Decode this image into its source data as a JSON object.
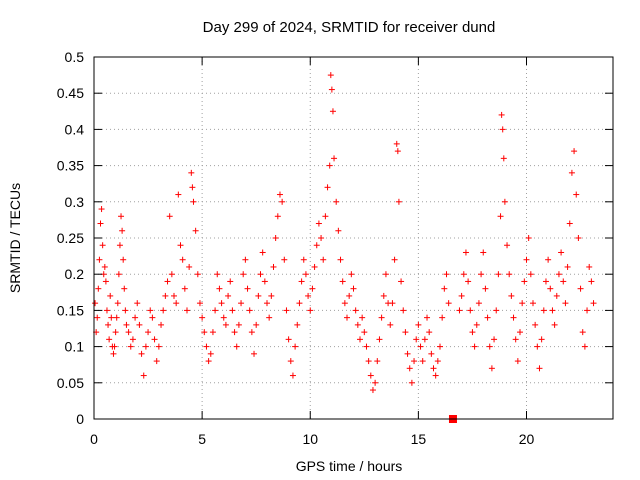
{
  "chart_data": {
    "type": "scatter",
    "title": "Day 299 of 2024, SRMTID for receiver dund",
    "xlabel": "GPS time / hours",
    "ylabel": "SRMTID / TECUs",
    "xlim": [
      0,
      24
    ],
    "ylim": [
      0,
      0.5
    ],
    "x_ticks": [
      0,
      5,
      10,
      15,
      20
    ],
    "x_tick_labels": [
      "0",
      "5",
      "10",
      "15",
      "20"
    ],
    "y_ticks": [
      0,
      0.05,
      0.1,
      0.15,
      0.2,
      0.25,
      0.3,
      0.35,
      0.4,
      0.45,
      0.5
    ],
    "y_tick_labels": [
      "0",
      "0.05",
      "0.1",
      "0.15",
      "0.2",
      "0.25",
      "0.3",
      "0.35",
      "0.4",
      "0.45",
      "0.5"
    ],
    "grid": true,
    "series": [
      {
        "name": "SRMTID",
        "marker": "plus",
        "color": "#ff0000",
        "points": [
          [
            0.05,
            0.16
          ],
          [
            0.1,
            0.12
          ],
          [
            0.15,
            0.14
          ],
          [
            0.2,
            0.18
          ],
          [
            0.25,
            0.22
          ],
          [
            0.3,
            0.27
          ],
          [
            0.35,
            0.29
          ],
          [
            0.4,
            0.24
          ],
          [
            0.45,
            0.2
          ],
          [
            0.5,
            0.21
          ],
          [
            0.55,
            0.19
          ],
          [
            0.6,
            0.15
          ],
          [
            0.65,
            0.13
          ],
          [
            0.7,
            0.11
          ],
          [
            0.75,
            0.17
          ],
          [
            0.8,
            0.14
          ],
          [
            0.85,
            0.1
          ],
          [
            0.9,
            0.09
          ],
          [
            0.95,
            0.1
          ],
          [
            1.0,
            0.12
          ],
          [
            1.05,
            0.14
          ],
          [
            1.1,
            0.16
          ],
          [
            1.15,
            0.2
          ],
          [
            1.2,
            0.24
          ],
          [
            1.25,
            0.28
          ],
          [
            1.3,
            0.26
          ],
          [
            1.35,
            0.22
          ],
          [
            1.4,
            0.18
          ],
          [
            1.45,
            0.15
          ],
          [
            1.5,
            0.13
          ],
          [
            1.6,
            0.12
          ],
          [
            1.7,
            0.1
          ],
          [
            1.8,
            0.11
          ],
          [
            1.9,
            0.14
          ],
          [
            2.0,
            0.16
          ],
          [
            2.1,
            0.13
          ],
          [
            2.2,
            0.09
          ],
          [
            2.3,
            0.06
          ],
          [
            2.4,
            0.1
          ],
          [
            2.5,
            0.12
          ],
          [
            2.6,
            0.15
          ],
          [
            2.7,
            0.14
          ],
          [
            2.8,
            0.11
          ],
          [
            2.9,
            0.08
          ],
          [
            3.0,
            0.1
          ],
          [
            3.1,
            0.13
          ],
          [
            3.2,
            0.15
          ],
          [
            3.3,
            0.17
          ],
          [
            3.4,
            0.19
          ],
          [
            3.5,
            0.28
          ],
          [
            3.6,
            0.2
          ],
          [
            3.7,
            0.17
          ],
          [
            3.8,
            0.16
          ],
          [
            3.9,
            0.31
          ],
          [
            4.0,
            0.24
          ],
          [
            4.1,
            0.22
          ],
          [
            4.2,
            0.18
          ],
          [
            4.3,
            0.15
          ],
          [
            4.4,
            0.21
          ],
          [
            4.5,
            0.34
          ],
          [
            4.55,
            0.32
          ],
          [
            4.6,
            0.3
          ],
          [
            4.7,
            0.26
          ],
          [
            4.8,
            0.2
          ],
          [
            4.9,
            0.16
          ],
          [
            5.0,
            0.14
          ],
          [
            5.1,
            0.12
          ],
          [
            5.2,
            0.1
          ],
          [
            5.3,
            0.08
          ],
          [
            5.4,
            0.09
          ],
          [
            5.5,
            0.12
          ],
          [
            5.6,
            0.15
          ],
          [
            5.7,
            0.2
          ],
          [
            5.8,
            0.18
          ],
          [
            5.9,
            0.16
          ],
          [
            6.0,
            0.14
          ],
          [
            6.1,
            0.13
          ],
          [
            6.2,
            0.17
          ],
          [
            6.3,
            0.19
          ],
          [
            6.4,
            0.15
          ],
          [
            6.5,
            0.12
          ],
          [
            6.6,
            0.1
          ],
          [
            6.7,
            0.13
          ],
          [
            6.8,
            0.16
          ],
          [
            6.9,
            0.2
          ],
          [
            7.0,
            0.22
          ],
          [
            7.1,
            0.18
          ],
          [
            7.2,
            0.15
          ],
          [
            7.3,
            0.12
          ],
          [
            7.4,
            0.09
          ],
          [
            7.5,
            0.13
          ],
          [
            7.6,
            0.17
          ],
          [
            7.7,
            0.2
          ],
          [
            7.8,
            0.23
          ],
          [
            7.9,
            0.19
          ],
          [
            8.0,
            0.16
          ],
          [
            8.1,
            0.14
          ],
          [
            8.2,
            0.17
          ],
          [
            8.3,
            0.21
          ],
          [
            8.4,
            0.25
          ],
          [
            8.5,
            0.28
          ],
          [
            8.6,
            0.31
          ],
          [
            8.7,
            0.3
          ],
          [
            8.8,
            0.22
          ],
          [
            8.9,
            0.15
          ],
          [
            9.0,
            0.11
          ],
          [
            9.1,
            0.08
          ],
          [
            9.2,
            0.06
          ],
          [
            9.3,
            0.1
          ],
          [
            9.4,
            0.13
          ],
          [
            9.5,
            0.16
          ],
          [
            9.6,
            0.19
          ],
          [
            9.7,
            0.22
          ],
          [
            9.8,
            0.2
          ],
          [
            9.9,
            0.17
          ],
          [
            10.0,
            0.15
          ],
          [
            10.1,
            0.18
          ],
          [
            10.2,
            0.21
          ],
          [
            10.3,
            0.24
          ],
          [
            10.4,
            0.27
          ],
          [
            10.5,
            0.25
          ],
          [
            10.6,
            0.22
          ],
          [
            10.7,
            0.28
          ],
          [
            10.8,
            0.32
          ],
          [
            10.9,
            0.35
          ],
          [
            10.95,
            0.475
          ],
          [
            11.0,
            0.455
          ],
          [
            11.05,
            0.425
          ],
          [
            11.1,
            0.36
          ],
          [
            11.2,
            0.3
          ],
          [
            11.3,
            0.26
          ],
          [
            11.4,
            0.22
          ],
          [
            11.5,
            0.19
          ],
          [
            11.6,
            0.16
          ],
          [
            11.7,
            0.14
          ],
          [
            11.8,
            0.17
          ],
          [
            11.9,
            0.2
          ],
          [
            12.0,
            0.18
          ],
          [
            12.1,
            0.15
          ],
          [
            12.2,
            0.13
          ],
          [
            12.3,
            0.11
          ],
          [
            12.4,
            0.14
          ],
          [
            12.5,
            0.12
          ],
          [
            12.6,
            0.1
          ],
          [
            12.7,
            0.08
          ],
          [
            12.8,
            0.06
          ],
          [
            12.9,
            0.04
          ],
          [
            13.0,
            0.05
          ],
          [
            13.1,
            0.08
          ],
          [
            13.2,
            0.11
          ],
          [
            13.3,
            0.14
          ],
          [
            13.4,
            0.17
          ],
          [
            13.5,
            0.2
          ],
          [
            13.6,
            0.16
          ],
          [
            13.7,
            0.13
          ],
          [
            13.8,
            0.16
          ],
          [
            13.9,
            0.22
          ],
          [
            14.0,
            0.38
          ],
          [
            14.05,
            0.37
          ],
          [
            14.1,
            0.3
          ],
          [
            14.2,
            0.19
          ],
          [
            14.3,
            0.15
          ],
          [
            14.4,
            0.12
          ],
          [
            14.5,
            0.09
          ],
          [
            14.6,
            0.07
          ],
          [
            14.7,
            0.05
          ],
          [
            14.8,
            0.08
          ],
          [
            14.9,
            0.11
          ],
          [
            15.0,
            0.13
          ],
          [
            15.1,
            0.1
          ],
          [
            15.2,
            0.08
          ],
          [
            15.3,
            0.11
          ],
          [
            15.4,
            0.14
          ],
          [
            15.5,
            0.12
          ],
          [
            15.6,
            0.09
          ],
          [
            15.7,
            0.07
          ],
          [
            15.8,
            0.06
          ],
          [
            15.9,
            0.08
          ],
          [
            16.0,
            0.1
          ],
          [
            16.1,
            0.14
          ],
          [
            16.2,
            0.18
          ],
          [
            16.3,
            0.2
          ],
          [
            16.4,
            0.16
          ],
          [
            16.9,
            0.15
          ],
          [
            17.0,
            0.17
          ],
          [
            17.1,
            0.2
          ],
          [
            17.2,
            0.23
          ],
          [
            17.3,
            0.19
          ],
          [
            17.4,
            0.15
          ],
          [
            17.5,
            0.12
          ],
          [
            17.6,
            0.1
          ],
          [
            17.7,
            0.13
          ],
          [
            17.8,
            0.16
          ],
          [
            17.9,
            0.2
          ],
          [
            18.0,
            0.23
          ],
          [
            18.1,
            0.18
          ],
          [
            18.2,
            0.14
          ],
          [
            18.3,
            0.1
          ],
          [
            18.4,
            0.07
          ],
          [
            18.5,
            0.11
          ],
          [
            18.6,
            0.15
          ],
          [
            18.7,
            0.2
          ],
          [
            18.8,
            0.28
          ],
          [
            18.85,
            0.42
          ],
          [
            18.9,
            0.4
          ],
          [
            18.95,
            0.36
          ],
          [
            19.0,
            0.3
          ],
          [
            19.1,
            0.24
          ],
          [
            19.2,
            0.2
          ],
          [
            19.3,
            0.17
          ],
          [
            19.4,
            0.14
          ],
          [
            19.5,
            0.11
          ],
          [
            19.6,
            0.08
          ],
          [
            19.7,
            0.12
          ],
          [
            19.8,
            0.16
          ],
          [
            19.9,
            0.19
          ],
          [
            20.0,
            0.22
          ],
          [
            20.1,
            0.25
          ],
          [
            20.2,
            0.2
          ],
          [
            20.3,
            0.16
          ],
          [
            20.4,
            0.13
          ],
          [
            20.5,
            0.1
          ],
          [
            20.6,
            0.07
          ],
          [
            20.7,
            0.11
          ],
          [
            20.8,
            0.15
          ],
          [
            20.9,
            0.19
          ],
          [
            21.0,
            0.22
          ],
          [
            21.1,
            0.18
          ],
          [
            21.2,
            0.15
          ],
          [
            21.3,
            0.13
          ],
          [
            21.4,
            0.17
          ],
          [
            21.5,
            0.2
          ],
          [
            21.6,
            0.23
          ],
          [
            21.7,
            0.19
          ],
          [
            21.8,
            0.16
          ],
          [
            21.9,
            0.21
          ],
          [
            22.0,
            0.27
          ],
          [
            22.1,
            0.34
          ],
          [
            22.2,
            0.37
          ],
          [
            22.3,
            0.31
          ],
          [
            22.4,
            0.25
          ],
          [
            22.5,
            0.18
          ],
          [
            22.6,
            0.12
          ],
          [
            22.7,
            0.1
          ],
          [
            22.8,
            0.15
          ],
          [
            22.9,
            0.21
          ],
          [
            23.0,
            0.19
          ],
          [
            23.1,
            0.16
          ]
        ]
      }
    ],
    "marker_zero": {
      "x": 16.6,
      "y": 0,
      "shape": "square",
      "color": "#ff0000"
    }
  }
}
